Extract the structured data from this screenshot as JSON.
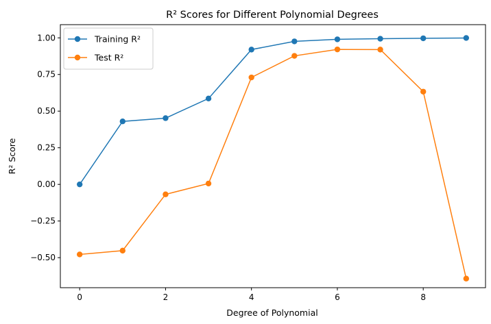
{
  "chart_data": {
    "type": "line",
    "title": "R² Scores for Different Polynomial Degrees",
    "xlabel": "Degree of Polynomial",
    "ylabel": "R² Score",
    "x": [
      0,
      1,
      2,
      3,
      4,
      5,
      6,
      7,
      8,
      9
    ],
    "xlim": [
      -0.45,
      9.45
    ],
    "ylim": [
      -0.705,
      1.09
    ],
    "xticks": [
      0,
      2,
      4,
      6,
      8
    ],
    "xtick_labels": [
      "0",
      "2",
      "4",
      "6",
      "8"
    ],
    "yticks": [
      -0.5,
      -0.25,
      0.0,
      0.25,
      0.5,
      0.75,
      1.0
    ],
    "ytick_labels": [
      "−0.50",
      "−0.25",
      "0.00",
      "0.25",
      "0.50",
      "0.75",
      "1.00"
    ],
    "grid": false,
    "legend_position": "top-left",
    "series": [
      {
        "name": "Training R²",
        "color": "#1f77b4",
        "marker": "circle",
        "values": [
          0.0,
          0.43,
          0.452,
          0.586,
          0.92,
          0.976,
          0.99,
          0.994,
          0.997,
          0.999
        ]
      },
      {
        "name": "Test R²",
        "color": "#ff7f0e",
        "marker": "circle",
        "values": [
          -0.478,
          -0.452,
          -0.068,
          0.006,
          0.73,
          0.877,
          0.921,
          0.92,
          0.633,
          -0.643
        ]
      }
    ]
  }
}
